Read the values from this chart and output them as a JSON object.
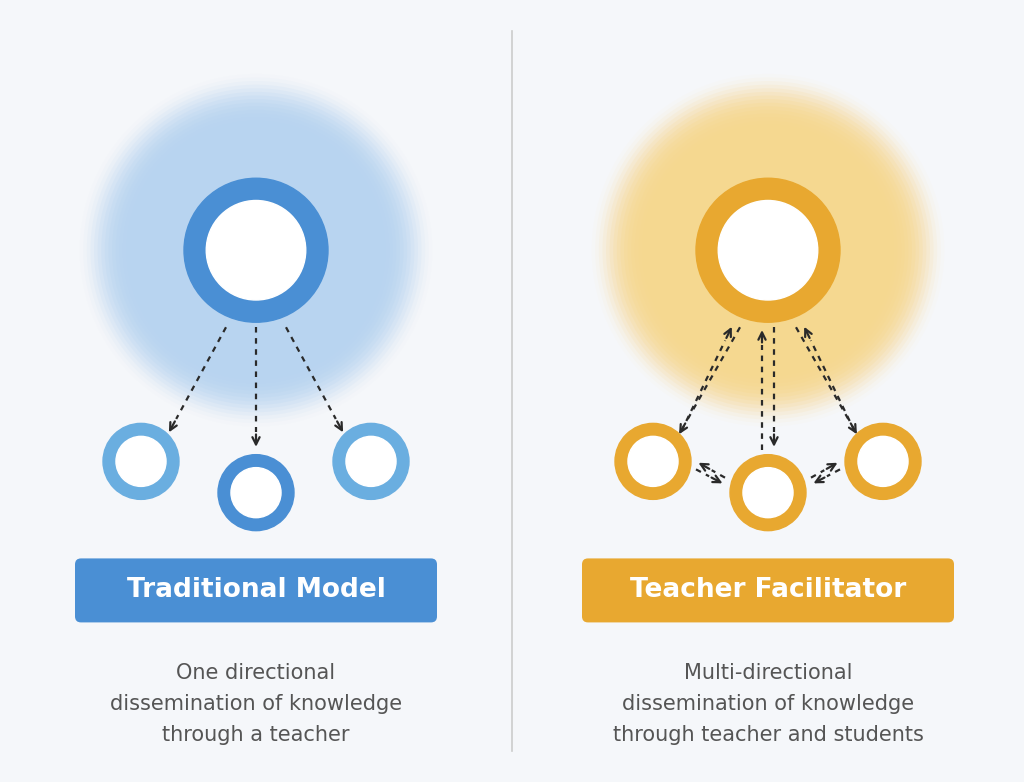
{
  "bg_color": "#f5f7fa",
  "left_title": "Traditional Model",
  "right_title": "Teacher Facilitator",
  "left_desc": "One directional\ndissemination of knowledge\nthrough a teacher",
  "right_desc": "Multi-directional\ndissemination of knowledge\nthrough teacher and students",
  "blue_ring_color": "#4A8FD4",
  "blue_student_color": "#6aaee0",
  "blue_glow_color": "#b8d4f0",
  "gold_color": "#E8A830",
  "gold_glow_color": "#f5d890",
  "arrow_color": "#2a2a2a",
  "title_blue_bg": "#4A8FD4",
  "title_gold_bg": "#E8A830",
  "title_text_color": "#ffffff",
  "desc_text_color": "#555555",
  "title_fontsize": 19,
  "desc_fontsize": 15,
  "white_color": "#ffffff",
  "divider_color": "#cccccc"
}
